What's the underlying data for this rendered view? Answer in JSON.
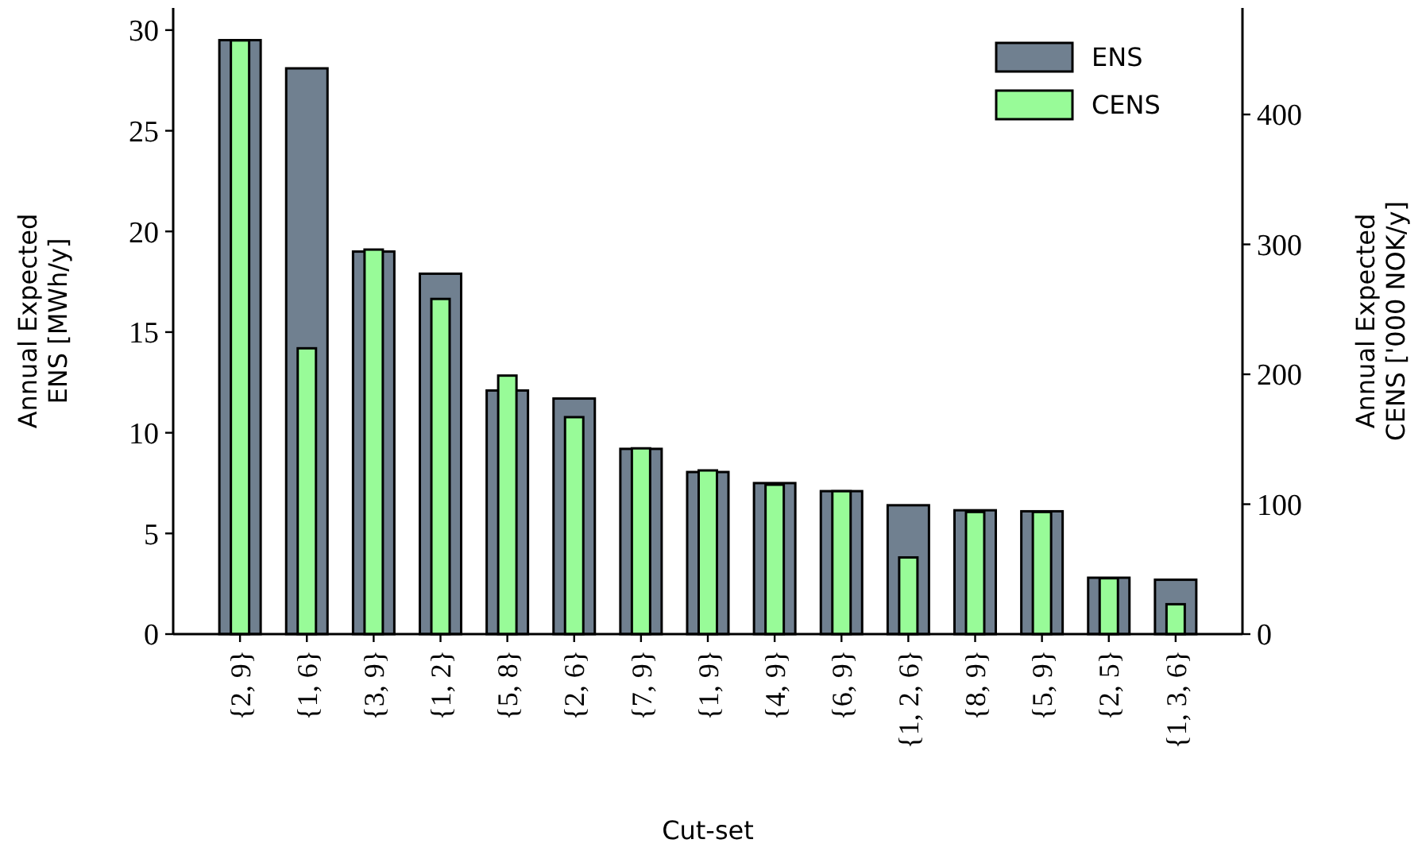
{
  "chart_data": {
    "type": "bar",
    "xlabel": "Cut-set",
    "ylabel": "Annual Expected\nENS [MWh/y]",
    "y2label": "Annual Expected\nCENS ['000 NOK/y]",
    "categories": [
      "{2, 9}",
      "{1, 6}",
      "{3, 9}",
      "{1, 2}",
      "{5, 8}",
      "{2, 6}",
      "{7, 9}",
      "{1, 9}",
      "{4, 9}",
      "{6, 9}",
      "{1, 2, 6}",
      "{8, 9}",
      "{5, 9}",
      "{2, 5}",
      "{1, 3, 6}"
    ],
    "series": [
      {
        "name": "ENS",
        "color": "#708090",
        "values": [
          29.5,
          28.1,
          19.0,
          17.9,
          12.1,
          11.7,
          9.2,
          8.05,
          7.5,
          7.1,
          6.4,
          6.15,
          6.1,
          2.8,
          2.7
        ]
      },
      {
        "name": "CENS",
        "color": "#98fb98",
        "axis": "y2",
        "values": [
          457,
          220,
          296,
          258,
          199,
          167,
          143,
          126,
          115,
          110,
          59,
          94,
          94,
          43,
          23
        ]
      }
    ],
    "ylim": [
      0,
      31.1
    ],
    "yticks": [
      0,
      5,
      10,
      15,
      20,
      25,
      30
    ],
    "y2lim": [
      0,
      482
    ],
    "y2ticks": [
      0,
      100,
      200,
      300,
      400
    ],
    "legend": "top right",
    "grid": false
  }
}
